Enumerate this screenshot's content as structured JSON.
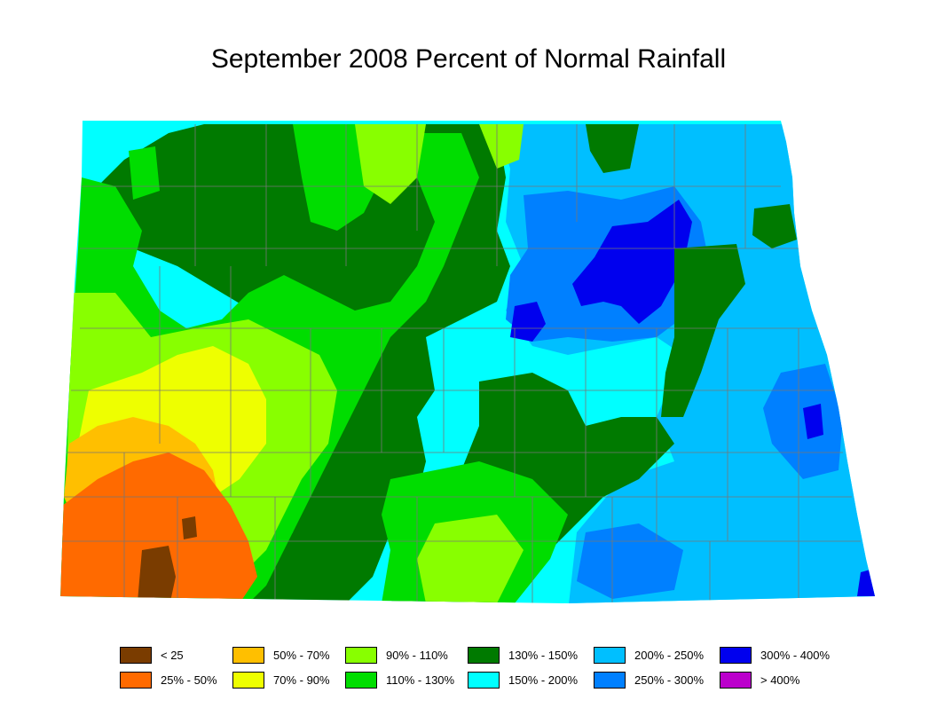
{
  "title": "September 2008 Percent of Normal Rainfall",
  "legend": [
    {
      "label": "< 25",
      "color": "#7a3c00"
    },
    {
      "label": "25% - 50%",
      "color": "#ff6a00"
    },
    {
      "label": "50% - 70%",
      "color": "#ffbf00"
    },
    {
      "label": "70% - 90%",
      "color": "#eeff00"
    },
    {
      "label": "90% - 110%",
      "color": "#88ff00"
    },
    {
      "label": "110% - 130%",
      "color": "#00dd00"
    },
    {
      "label": "130% - 150%",
      "color": "#007a00"
    },
    {
      "label": "150% - 200%",
      "color": "#00ffff"
    },
    {
      "label": "200% - 250%",
      "color": "#00bfff"
    },
    {
      "label": "250% - 300%",
      "color": "#0080ff"
    },
    {
      "label": "300% - 400%",
      "color": "#0000ee"
    },
    {
      "label": "> 400%",
      "color": "#bb00cc"
    }
  ]
}
